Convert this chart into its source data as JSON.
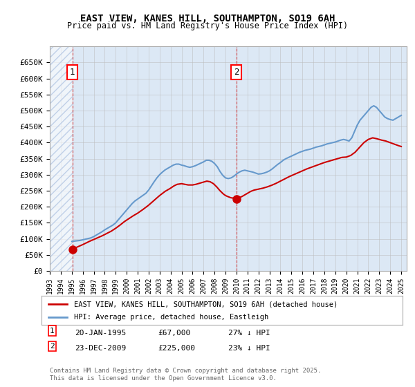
{
  "title1": "EAST VIEW, KANES HILL, SOUTHAMPTON, SO19 6AH",
  "title2": "Price paid vs. HM Land Registry's House Price Index (HPI)",
  "ylabel": "",
  "background_color": "#e8f0f8",
  "plot_bg_color": "#dce8f5",
  "hatch_color": "#c0d0e8",
  "ylim": [
    0,
    700000
  ],
  "yticks": [
    0,
    50000,
    100000,
    150000,
    200000,
    250000,
    300000,
    350000,
    400000,
    450000,
    500000,
    550000,
    600000,
    650000
  ],
  "ytick_labels": [
    "£0",
    "£50K",
    "£100K",
    "£150K",
    "£200K",
    "£250K",
    "£300K",
    "£350K",
    "£400K",
    "£450K",
    "£500K",
    "£550K",
    "£600K",
    "£650K"
  ],
  "sale1_date": 1995.05,
  "sale1_price": 67000,
  "sale1_label": "1",
  "sale2_date": 2009.98,
  "sale2_price": 225000,
  "sale2_label": "2",
  "legend_line1": "EAST VIEW, KANES HILL, SOUTHAMPTON, SO19 6AH (detached house)",
  "legend_line2": "HPI: Average price, detached house, Eastleigh",
  "annotation1": "1    20-JAN-1995         £67,000          27% ↓ HPI",
  "annotation2": "2    23-DEC-2009         £225,000        23% ↓ HPI",
  "footer": "Contains HM Land Registry data © Crown copyright and database right 2025.\nThis data is licensed under the Open Government Licence v3.0.",
  "line_color_red": "#cc0000",
  "line_color_blue": "#6699cc",
  "grid_color": "#bbbbbb",
  "hpi_data_x": [
    1995.0,
    1995.25,
    1995.5,
    1995.75,
    1996.0,
    1996.25,
    1996.5,
    1996.75,
    1997.0,
    1997.25,
    1997.5,
    1997.75,
    1998.0,
    1998.25,
    1998.5,
    1998.75,
    1999.0,
    1999.25,
    1999.5,
    1999.75,
    2000.0,
    2000.25,
    2000.5,
    2000.75,
    2001.0,
    2001.25,
    2001.5,
    2001.75,
    2002.0,
    2002.25,
    2002.5,
    2002.75,
    2003.0,
    2003.25,
    2003.5,
    2003.75,
    2004.0,
    2004.25,
    2004.5,
    2004.75,
    2005.0,
    2005.25,
    2005.5,
    2005.75,
    2006.0,
    2006.25,
    2006.5,
    2006.75,
    2007.0,
    2007.25,
    2007.5,
    2007.75,
    2008.0,
    2008.25,
    2008.5,
    2008.75,
    2009.0,
    2009.25,
    2009.5,
    2009.75,
    2010.0,
    2010.25,
    2010.5,
    2010.75,
    2011.0,
    2011.25,
    2011.5,
    2011.75,
    2012.0,
    2012.25,
    2012.5,
    2012.75,
    2013.0,
    2013.25,
    2013.5,
    2013.75,
    2014.0,
    2014.25,
    2014.5,
    2014.75,
    2015.0,
    2015.25,
    2015.5,
    2015.75,
    2016.0,
    2016.25,
    2016.5,
    2016.75,
    2017.0,
    2017.25,
    2017.5,
    2017.75,
    2018.0,
    2018.25,
    2018.5,
    2018.75,
    2019.0,
    2019.25,
    2019.5,
    2019.75,
    2020.0,
    2020.25,
    2020.5,
    2020.75,
    2021.0,
    2021.25,
    2021.5,
    2021.75,
    2022.0,
    2022.25,
    2022.5,
    2022.75,
    2023.0,
    2023.25,
    2023.5,
    2023.75,
    2024.0,
    2024.25,
    2024.5,
    2024.75,
    2025.0
  ],
  "hpi_data_y": [
    92000,
    93000,
    94000,
    95000,
    97000,
    99000,
    101000,
    103000,
    107000,
    112000,
    117000,
    122000,
    128000,
    133000,
    138000,
    143000,
    150000,
    160000,
    170000,
    180000,
    190000,
    200000,
    210000,
    218000,
    224000,
    230000,
    236000,
    242000,
    252000,
    265000,
    278000,
    290000,
    300000,
    308000,
    315000,
    320000,
    325000,
    330000,
    333000,
    333000,
    330000,
    328000,
    325000,
    323000,
    325000,
    328000,
    332000,
    336000,
    340000,
    345000,
    345000,
    342000,
    335000,
    325000,
    310000,
    298000,
    290000,
    288000,
    290000,
    295000,
    302000,
    308000,
    312000,
    314000,
    312000,
    310000,
    308000,
    305000,
    302000,
    303000,
    305000,
    308000,
    312000,
    318000,
    325000,
    332000,
    338000,
    345000,
    350000,
    354000,
    358000,
    362000,
    366000,
    370000,
    373000,
    376000,
    378000,
    380000,
    383000,
    386000,
    388000,
    390000,
    393000,
    396000,
    398000,
    400000,
    402000,
    405000,
    408000,
    410000,
    408000,
    405000,
    415000,
    435000,
    455000,
    470000,
    480000,
    490000,
    500000,
    510000,
    515000,
    510000,
    500000,
    490000,
    480000,
    475000,
    472000,
    470000,
    475000,
    480000,
    485000
  ],
  "price_data_x": [
    1995.05,
    1995.1,
    1995.2,
    1995.4,
    1995.6,
    1995.8,
    1996.0,
    1996.3,
    1996.6,
    1997.0,
    1997.4,
    1997.8,
    1998.2,
    1998.6,
    1999.0,
    1999.4,
    1999.8,
    2000.2,
    2000.6,
    2001.0,
    2001.5,
    2002.0,
    2002.5,
    2003.0,
    2003.5,
    2004.0,
    2004.3,
    2004.6,
    2005.0,
    2005.3,
    2005.6,
    2006.0,
    2006.3,
    2006.6,
    2007.0,
    2007.3,
    2007.6,
    2007.9,
    2008.2,
    2008.5,
    2008.8,
    2009.0,
    2009.2,
    2009.5,
    2009.75,
    2009.98,
    2010.2,
    2010.5,
    2010.8,
    2011.0,
    2011.3,
    2011.6,
    2012.0,
    2012.4,
    2012.8,
    2013.2,
    2013.6,
    2014.0,
    2014.4,
    2014.8,
    2015.2,
    2015.6,
    2016.0,
    2016.4,
    2016.8,
    2017.2,
    2017.6,
    2018.0,
    2018.4,
    2018.8,
    2019.2,
    2019.6,
    2020.0,
    2020.4,
    2020.8,
    2021.2,
    2021.6,
    2022.0,
    2022.4,
    2022.8,
    2023.2,
    2023.6,
    2024.0,
    2024.4,
    2024.8,
    2025.0
  ],
  "price_data_y": [
    67000,
    68000,
    70000,
    73000,
    76000,
    79000,
    82000,
    87000,
    92000,
    98000,
    104000,
    110000,
    117000,
    124000,
    133000,
    143000,
    154000,
    163000,
    172000,
    180000,
    192000,
    205000,
    220000,
    235000,
    248000,
    258000,
    265000,
    270000,
    272000,
    270000,
    268000,
    268000,
    270000,
    273000,
    277000,
    280000,
    278000,
    272000,
    262000,
    250000,
    240000,
    235000,
    232000,
    228000,
    227000,
    225000,
    228000,
    232000,
    238000,
    242000,
    248000,
    252000,
    255000,
    258000,
    262000,
    267000,
    273000,
    280000,
    287000,
    294000,
    300000,
    306000,
    312000,
    318000,
    323000,
    328000,
    333000,
    338000,
    342000,
    346000,
    350000,
    354000,
    355000,
    360000,
    370000,
    385000,
    400000,
    410000,
    415000,
    412000,
    408000,
    405000,
    400000,
    395000,
    390000,
    388000
  ]
}
